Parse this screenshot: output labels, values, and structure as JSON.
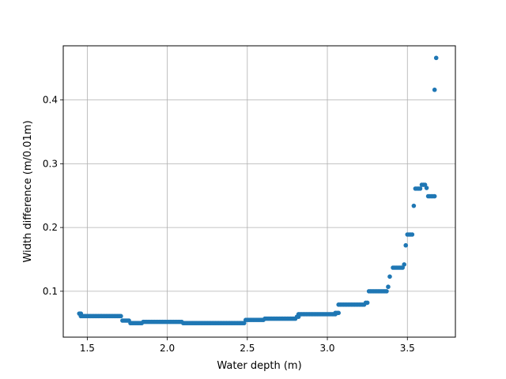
{
  "chart_data": {
    "type": "scatter",
    "xlabel": "Water depth (m)",
    "ylabel": "Width difference (m/0.01m)",
    "xlim": [
      1.35,
      3.8
    ],
    "ylim": [
      0.028,
      0.485
    ],
    "xticks": [
      1.5,
      2.0,
      2.5,
      3.0,
      3.5
    ],
    "xtick_labels": [
      "1.5",
      "2.0",
      "2.5",
      "3.0",
      "3.5"
    ],
    "yticks": [
      0.1,
      0.2,
      0.3,
      0.4
    ],
    "ytick_labels": [
      "0.1",
      "0.2",
      "0.3",
      "0.4"
    ],
    "grid": true,
    "point_color": "#1f77b4",
    "segments": [
      {
        "x0": 1.45,
        "x1": 1.46,
        "y": 0.065
      },
      {
        "x0": 1.46,
        "x1": 1.71,
        "y": 0.061
      },
      {
        "x0": 1.72,
        "x1": 1.76,
        "y": 0.054
      },
      {
        "x0": 1.77,
        "x1": 1.84,
        "y": 0.05
      },
      {
        "x0": 1.85,
        "x1": 2.09,
        "y": 0.052
      },
      {
        "x0": 2.1,
        "x1": 2.48,
        "y": 0.05
      },
      {
        "x0": 2.49,
        "x1": 2.6,
        "y": 0.055
      },
      {
        "x0": 2.61,
        "x1": 2.8,
        "y": 0.057
      },
      {
        "x0": 2.81,
        "x1": 2.82,
        "y": 0.06
      },
      {
        "x0": 2.82,
        "x1": 3.05,
        "y": 0.064
      },
      {
        "x0": 3.05,
        "x1": 3.07,
        "y": 0.066
      },
      {
        "x0": 3.07,
        "x1": 3.23,
        "y": 0.079
      },
      {
        "x0": 3.24,
        "x1": 3.25,
        "y": 0.082
      },
      {
        "x0": 3.26,
        "x1": 3.37,
        "y": 0.1
      },
      {
        "x0": 3.41,
        "x1": 3.47,
        "y": 0.137
      },
      {
        "x0": 3.5,
        "x1": 3.53,
        "y": 0.189
      },
      {
        "x0": 3.55,
        "x1": 3.58,
        "y": 0.261
      },
      {
        "x0": 3.59,
        "x1": 3.61,
        "y": 0.267
      },
      {
        "x0": 3.63,
        "x1": 3.67,
        "y": 0.249
      }
    ],
    "points": [
      {
        "x": 3.38,
        "y": 0.107
      },
      {
        "x": 3.39,
        "y": 0.123
      },
      {
        "x": 3.48,
        "y": 0.142
      },
      {
        "x": 3.49,
        "y": 0.172
      },
      {
        "x": 3.54,
        "y": 0.234
      },
      {
        "x": 3.62,
        "y": 0.262
      },
      {
        "x": 3.67,
        "y": 0.416
      },
      {
        "x": 3.68,
        "y": 0.466
      }
    ]
  }
}
